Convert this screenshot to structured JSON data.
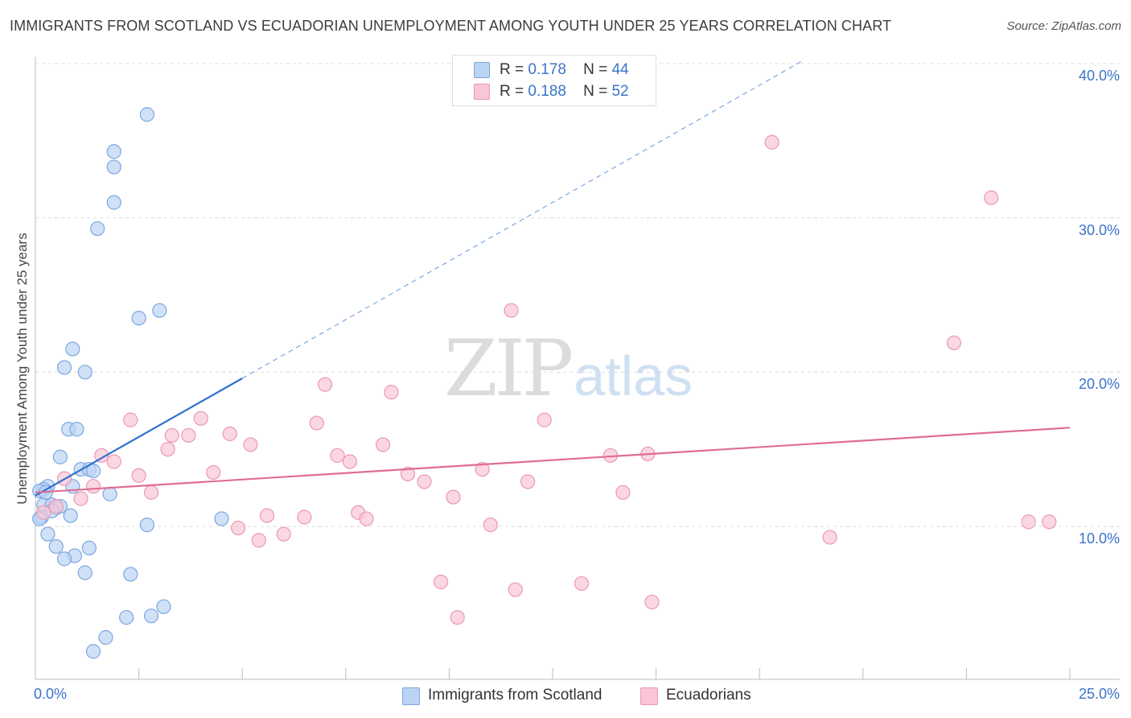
{
  "header": {
    "title": "IMMIGRANTS FROM SCOTLAND VS ECUADORIAN UNEMPLOYMENT AMONG YOUTH UNDER 25 YEARS CORRELATION CHART",
    "source": "Source: ZipAtlas.com"
  },
  "watermark": {
    "zip": "ZIP",
    "atlas": "atlas"
  },
  "legend_top": {
    "rows": [
      {
        "r_label": "R =",
        "r_value": "0.178",
        "n_label": "N =",
        "n_value": "44"
      },
      {
        "r_label": "R =",
        "r_value": "0.188",
        "n_label": "N =",
        "n_value": "52"
      }
    ]
  },
  "legend_bottom": {
    "items": [
      "Immigrants from Scotland",
      "Ecuadorians"
    ]
  },
  "colors": {
    "scotland_fill": "#bcd4f4",
    "scotland_stroke": "#7aa7e0",
    "scotland_line": "#2f6fcf",
    "ecuador_fill": "#f9c6d5",
    "ecuador_stroke": "#ea98b3",
    "ecuador_line": "#e06c98",
    "axis_text": "#3a74c8",
    "grid": "#dddddd"
  },
  "chart_data": {
    "type": "scatter",
    "title": "IMMIGRANTS FROM SCOTLAND VS ECUADORIAN UNEMPLOYMENT AMONG YOUTH UNDER 25 YEARS CORRELATION CHART",
    "xlabel": "",
    "ylabel": "Unemployment Among Youth under 25 years",
    "xlim": [
      0,
      25
    ],
    "ylim": [
      0,
      42
    ],
    "x_tick_labels": [
      "0.0%",
      "25.0%"
    ],
    "y_ticks": [
      10,
      20,
      30,
      40
    ],
    "y_tick_labels": [
      "10.0%",
      "20.0%",
      "30.0%",
      "40.0%"
    ],
    "grid": true,
    "legend_position": "top-center",
    "series": [
      {
        "name": "Immigrants from Scotland",
        "r": 0.178,
        "n": 44,
        "trend": {
          "x0": 0.0,
          "y0": 12.0,
          "x1": 5.0,
          "y1": 19.6,
          "dashed_to_x": 18.5
        },
        "points": [
          [
            2.7,
            36.7
          ],
          [
            1.9,
            34.3
          ],
          [
            1.9,
            33.3
          ],
          [
            1.9,
            31.0
          ],
          [
            1.5,
            29.3
          ],
          [
            3.0,
            24.0
          ],
          [
            2.5,
            23.5
          ],
          [
            0.9,
            21.5
          ],
          [
            0.7,
            20.3
          ],
          [
            1.2,
            20.0
          ],
          [
            0.8,
            16.3
          ],
          [
            1.0,
            16.3
          ],
          [
            0.6,
            14.5
          ],
          [
            1.1,
            13.7
          ],
          [
            1.3,
            13.7
          ],
          [
            1.4,
            13.6
          ],
          [
            0.3,
            12.6
          ],
          [
            0.2,
            12.4
          ],
          [
            0.1,
            12.3
          ],
          [
            0.9,
            12.6
          ],
          [
            1.8,
            12.1
          ],
          [
            0.2,
            11.4
          ],
          [
            0.4,
            11.4
          ],
          [
            0.5,
            11.2
          ],
          [
            0.6,
            11.3
          ],
          [
            0.15,
            10.6
          ],
          [
            0.1,
            10.5
          ],
          [
            0.85,
            10.7
          ],
          [
            2.7,
            10.1
          ],
          [
            4.5,
            10.5
          ],
          [
            0.3,
            9.5
          ],
          [
            0.5,
            8.7
          ],
          [
            1.3,
            8.6
          ],
          [
            0.95,
            8.1
          ],
          [
            0.7,
            7.9
          ],
          [
            1.2,
            7.0
          ],
          [
            2.3,
            6.9
          ],
          [
            3.1,
            4.8
          ],
          [
            2.8,
            4.2
          ],
          [
            2.2,
            4.1
          ],
          [
            1.7,
            2.8
          ],
          [
            1.4,
            1.9
          ],
          [
            0.4,
            11.0
          ],
          [
            0.25,
            12.2
          ]
        ]
      },
      {
        "name": "Ecuadorians",
        "r": 0.188,
        "n": 52,
        "trend": {
          "x0": 0.0,
          "y0": 12.2,
          "x1": 25.0,
          "y1": 16.4
        },
        "points": [
          [
            17.8,
            34.9
          ],
          [
            23.1,
            31.3
          ],
          [
            11.5,
            24.0
          ],
          [
            22.2,
            21.9
          ],
          [
            7.0,
            19.2
          ],
          [
            8.6,
            18.7
          ],
          [
            12.3,
            16.9
          ],
          [
            2.3,
            16.9
          ],
          [
            4.0,
            17.0
          ],
          [
            6.8,
            16.7
          ],
          [
            3.3,
            15.9
          ],
          [
            3.7,
            15.9
          ],
          [
            4.7,
            16.0
          ],
          [
            5.2,
            15.3
          ],
          [
            8.4,
            15.3
          ],
          [
            3.2,
            15.0
          ],
          [
            1.6,
            14.6
          ],
          [
            1.9,
            14.2
          ],
          [
            7.3,
            14.6
          ],
          [
            7.6,
            14.2
          ],
          [
            13.9,
            14.6
          ],
          [
            14.8,
            14.7
          ],
          [
            10.8,
            13.7
          ],
          [
            4.3,
            13.5
          ],
          [
            9.0,
            13.4
          ],
          [
            2.5,
            13.3
          ],
          [
            9.4,
            12.9
          ],
          [
            11.9,
            12.9
          ],
          [
            1.4,
            12.6
          ],
          [
            2.8,
            12.2
          ],
          [
            14.2,
            12.2
          ],
          [
            10.1,
            11.9
          ],
          [
            1.1,
            11.8
          ],
          [
            0.5,
            11.3
          ],
          [
            0.2,
            10.9
          ],
          [
            7.8,
            10.9
          ],
          [
            5.6,
            10.7
          ],
          [
            6.5,
            10.6
          ],
          [
            8.0,
            10.5
          ],
          [
            11.0,
            10.1
          ],
          [
            4.9,
            9.9
          ],
          [
            6.0,
            9.5
          ],
          [
            5.4,
            9.1
          ],
          [
            19.2,
            9.3
          ],
          [
            24.0,
            10.3
          ],
          [
            24.5,
            10.3
          ],
          [
            9.8,
            6.4
          ],
          [
            13.2,
            6.3
          ],
          [
            11.6,
            5.9
          ],
          [
            14.9,
            5.1
          ],
          [
            10.2,
            4.1
          ],
          [
            0.7,
            13.1
          ]
        ]
      }
    ]
  }
}
